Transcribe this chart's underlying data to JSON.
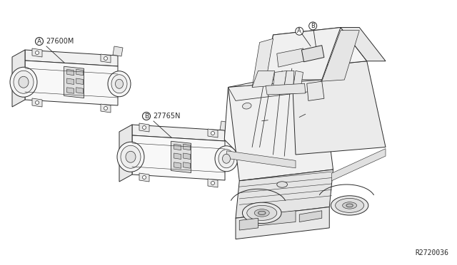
{
  "bg_color": "#ffffff",
  "line_color": "#2a2a2a",
  "part_A": "27600M",
  "part_B": "27765N",
  "ref_code": "R2720036",
  "fig_width": 6.4,
  "fig_height": 3.72,
  "dpi": 100,
  "label_A": "A",
  "label_B": "B"
}
